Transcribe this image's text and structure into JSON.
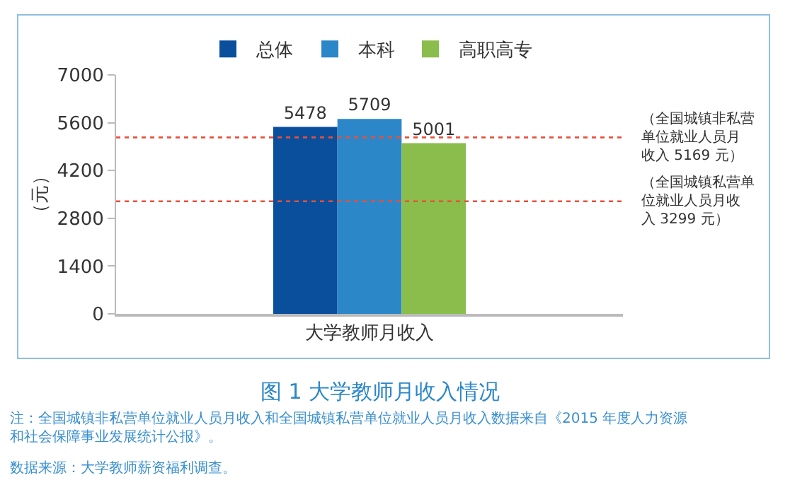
{
  "chart_data": {
    "type": "bar",
    "title": "图 1 大学教师月收入情况",
    "ylabel": "（元）",
    "categories": [
      "大学教师月收入"
    ],
    "series": [
      {
        "name": "总体",
        "color": "#0a4f9c",
        "values": [
          5478
        ]
      },
      {
        "name": "本科",
        "color": "#2b87c8",
        "values": [
          5709
        ]
      },
      {
        "name": "高职高专",
        "color": "#8bbd4c",
        "values": [
          5001
        ]
      }
    ],
    "ylim": [
      0,
      7000
    ],
    "yticks": [
      0,
      1400,
      2800,
      4200,
      5600,
      7000
    ],
    "grid": false,
    "legend": "top",
    "data_labels": true,
    "ref_lines": [
      {
        "axis": "y",
        "value": 5169,
        "label": "（全国城镇非私营单位就业人员月收入 5169 元）",
        "color": "#e8503a",
        "line_style": "dotted"
      },
      {
        "axis": "y",
        "value": 3299,
        "label": "（全国城镇私营单位就业人员月收入 3299 元）",
        "color": "#e8503a",
        "line_style": "dotted"
      }
    ],
    "annotations": [
      "注：全国城镇非私营单位就业人员月收入和全国城镇私营单位就业人员月收入数据来自《2015 年度人力资源和社会保障事业发展统计公报》。",
      "数据来源：大学教师薪资福利调查。"
    ]
  }
}
